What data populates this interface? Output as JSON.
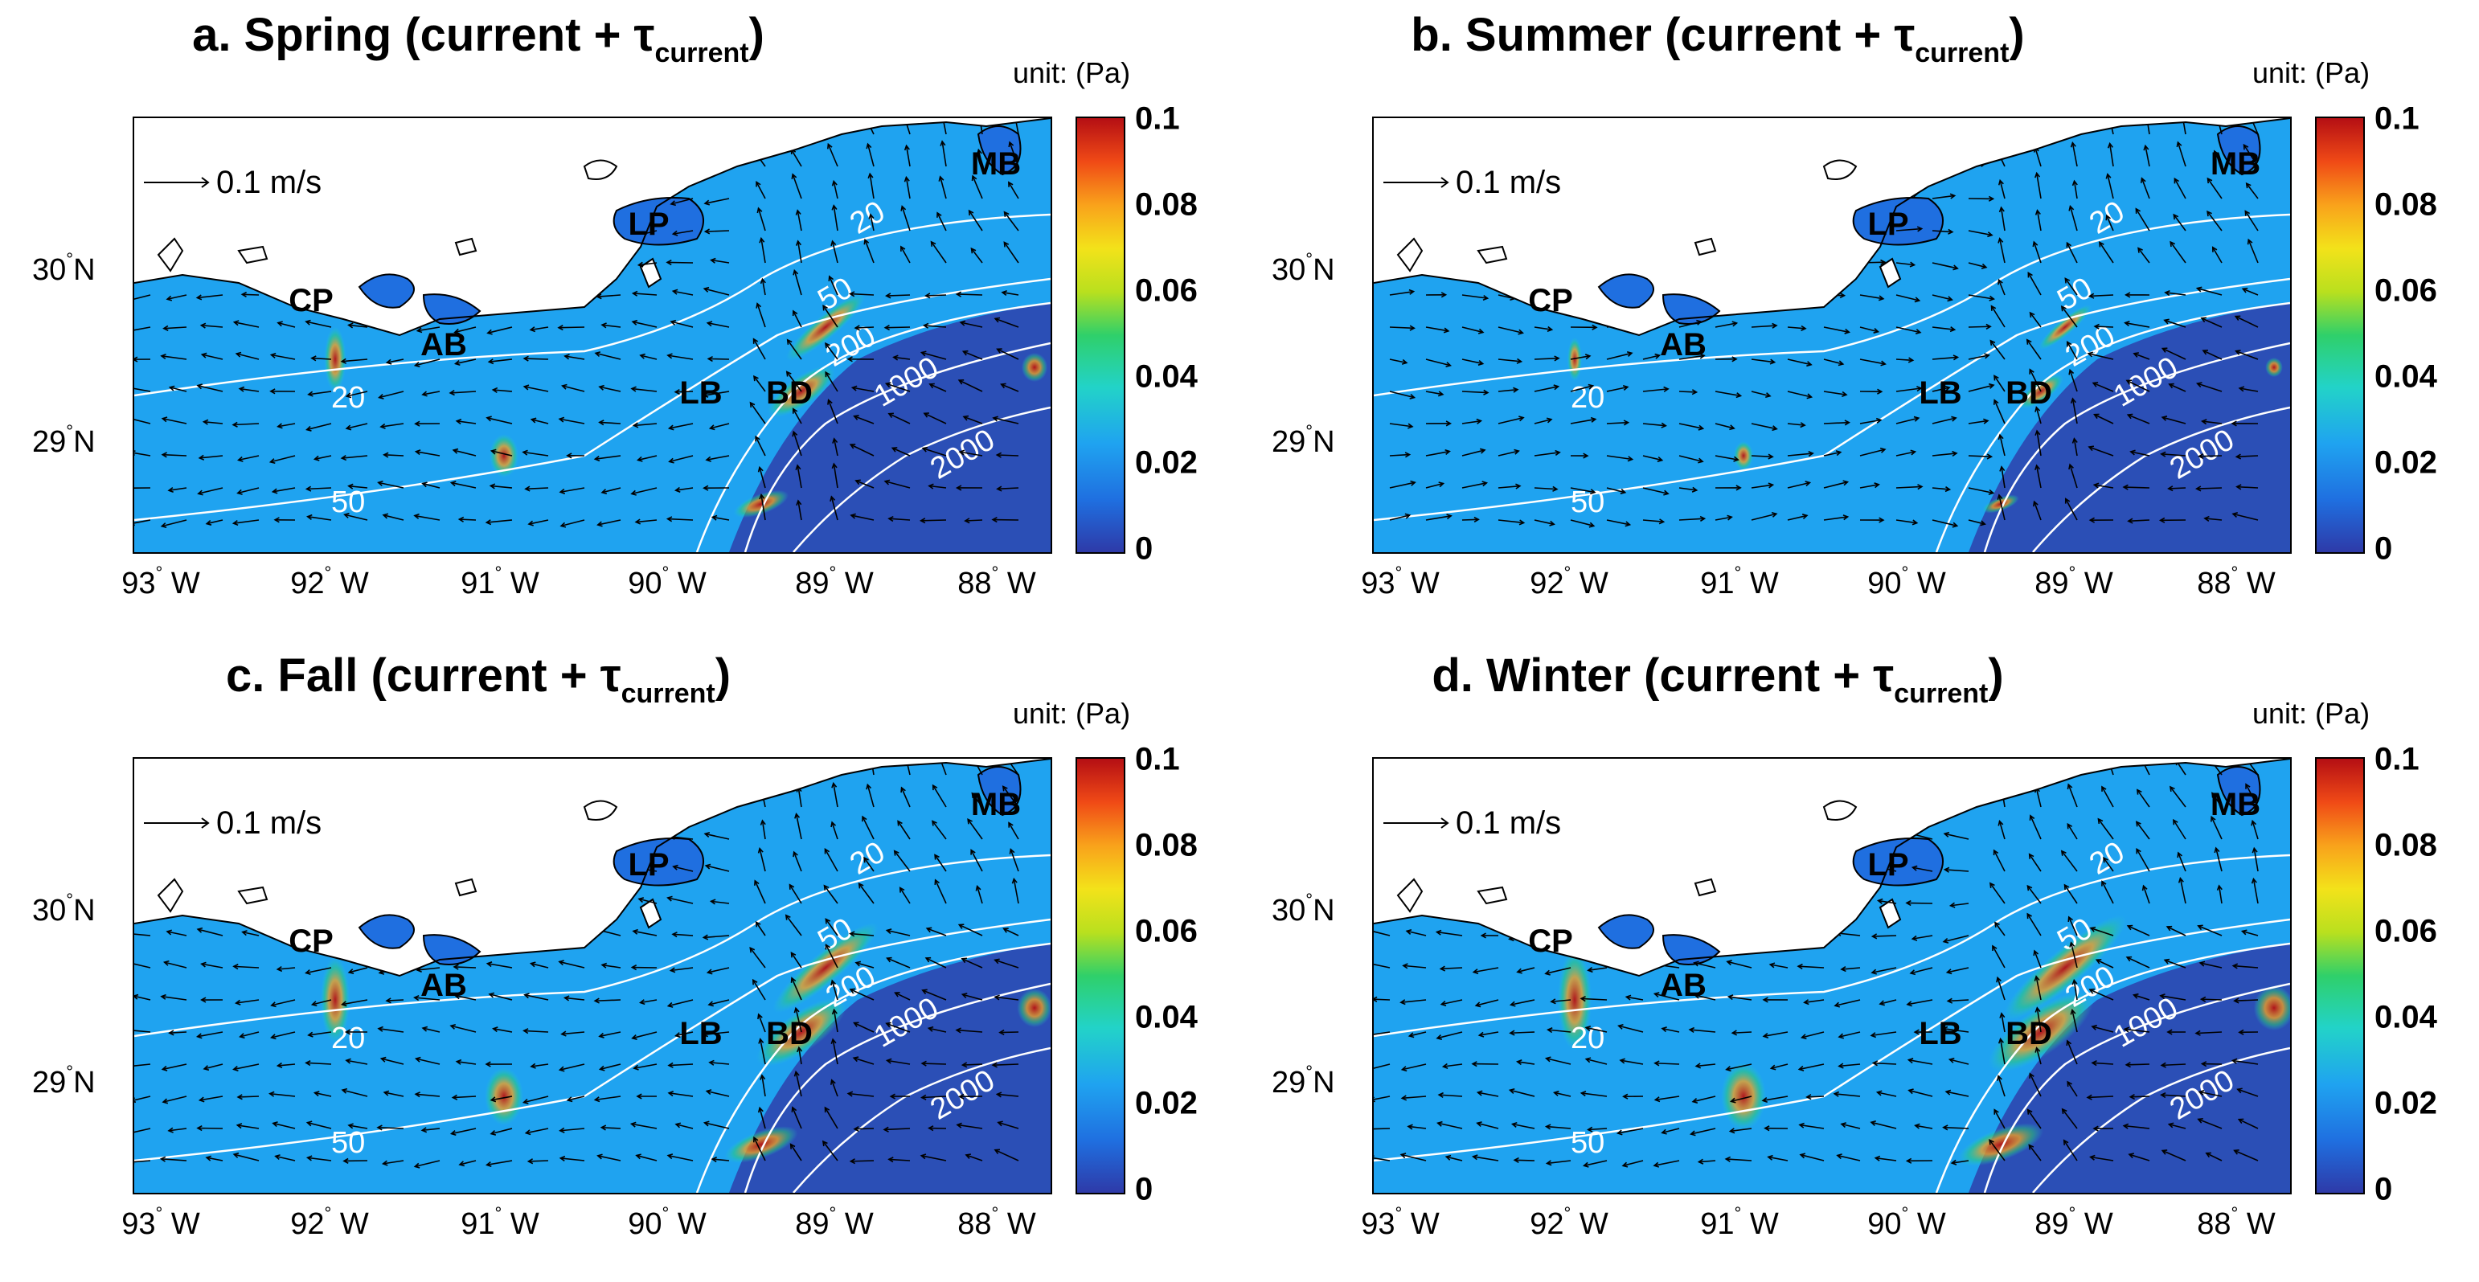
{
  "colors": {
    "land": "#ffffff",
    "coastline": "#000000",
    "contour": "#ffffff",
    "vector": "#000000",
    "colormap": [
      "#2e3aa8",
      "#1f6fe0",
      "#1fa3f0",
      "#22d3c8",
      "#2fd06a",
      "#b9e01e",
      "#f3e21a",
      "#f9a21b",
      "#f04a16",
      "#b50f14"
    ]
  },
  "colorbar": {
    "unit_label": "unit: (Pa)",
    "ticks": [
      "0.1",
      "0.08",
      "0.06",
      "0.04",
      "0.02",
      "0"
    ],
    "range": [
      0,
      0.1
    ]
  },
  "axes": {
    "lat_labels": [
      "30",
      "N",
      "29",
      "N"
    ],
    "lon_labels": [
      "93",
      "W",
      "92",
      "W",
      "91",
      "W",
      "90",
      "W",
      "89",
      "W",
      "88",
      "W"
    ]
  },
  "scale_vector": {
    "label": "0.1 m/s"
  },
  "regions": [
    "MB",
    "LP",
    "CP",
    "AB",
    "LB",
    "BD"
  ],
  "contours": {
    "labels_east": [
      "20",
      "50",
      "200",
      "1000",
      "2000"
    ],
    "labels_west": [
      "20",
      "50"
    ]
  },
  "panels": [
    {
      "id": "spring",
      "title_main": "a. Spring (current + τ",
      "title_sub": "current",
      "title_end": ")",
      "intensity": 0.9,
      "flow": "westward"
    },
    {
      "id": "summer",
      "title_main": "b. Summer (current + τ",
      "title_sub": "current",
      "title_end": ")",
      "intensity": 0.6,
      "flow": "eastward"
    },
    {
      "id": "fall",
      "title_main": "c. Fall (current + τ",
      "title_sub": "current",
      "title_end": ")",
      "intensity": 1.2,
      "flow": "westward"
    },
    {
      "id": "winter",
      "title_main": "d. Winter (current + τ",
      "title_sub": "current",
      "title_end": ")",
      "intensity": 1.4,
      "flow": "westward"
    }
  ]
}
